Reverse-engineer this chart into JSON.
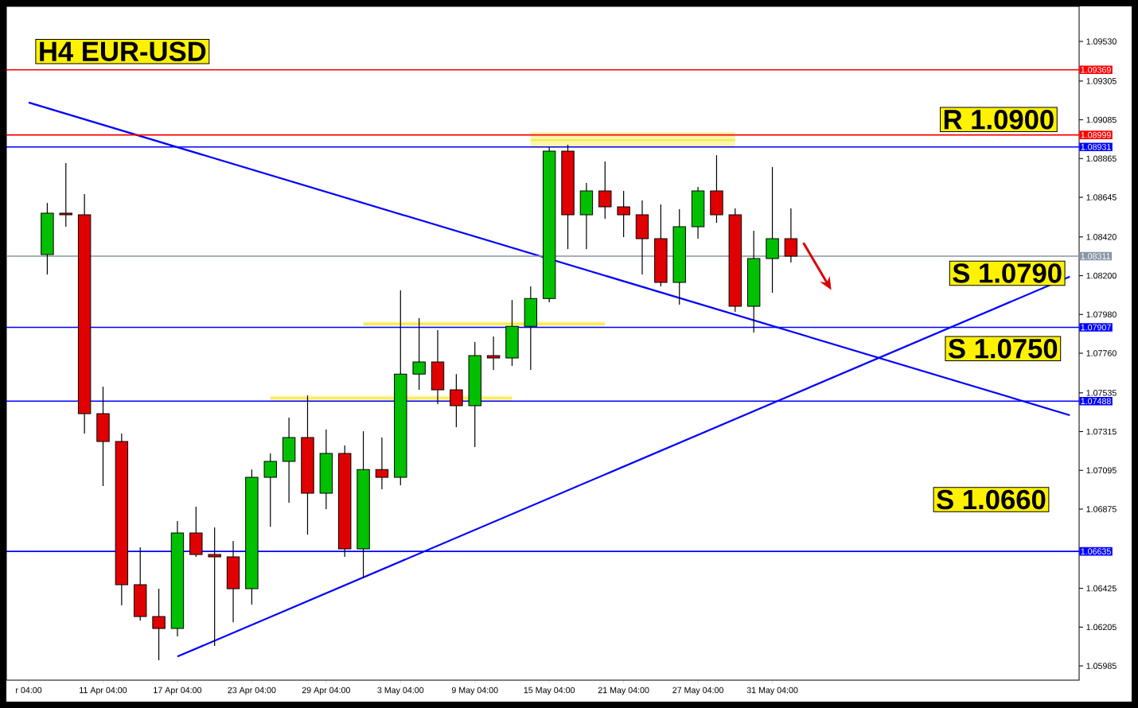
{
  "chart_data": {
    "type": "candlestick",
    "title": "H4 EUR-USD",
    "categories": [
      "r 04:00",
      null,
      null,
      null,
      "11 Apr 04:00",
      null,
      null,
      null,
      "17 Apr 04:00",
      null,
      null,
      null,
      "23 Apr 04:00",
      null,
      null,
      null,
      "29 Apr 04:00",
      null,
      null,
      null,
      "3 May 04:00",
      null,
      null,
      null,
      "9 May 04:00",
      null,
      null,
      null,
      "15 May 04:00",
      null,
      null,
      null,
      "21 May 04:00",
      null,
      null,
      null,
      "27 May 04:00",
      null,
      null,
      null,
      "31 May 04:00",
      null,
      null,
      null,
      null,
      null,
      null,
      null,
      null,
      null,
      null,
      null,
      null,
      null,
      null,
      null,
      null
    ],
    "ohlc": [
      null,
      [
        1.0832,
        1.08613,
        1.08207,
        1.08555
      ],
      [
        1.08555,
        1.08839,
        1.08478,
        1.08546
      ],
      [
        1.08546,
        1.08663,
        1.07304,
        1.07417
      ],
      [
        1.07417,
        1.0757,
        1.07006,
        1.07259
      ],
      [
        1.07259,
        1.07304,
        1.06328,
        1.06446
      ],
      [
        1.06446,
        1.06658,
        1.06242,
        1.06265
      ],
      [
        1.06265,
        1.06423,
        1.06017,
        1.06197
      ],
      [
        1.06197,
        1.06807,
        1.06152,
        1.06739
      ],
      [
        1.06739,
        1.06888,
        1.06604,
        1.06617
      ],
      [
        1.06617,
        1.06771,
        1.06098,
        1.06604
      ],
      [
        1.06604,
        1.06694,
        1.06233,
        1.06423
      ],
      [
        1.06423,
        1.071,
        1.06333,
        1.07055
      ],
      [
        1.07055,
        1.07191,
        1.06775,
        1.07146
      ],
      [
        1.07146,
        1.07394,
        1.06911,
        1.07281
      ],
      [
        1.07281,
        1.0752,
        1.0673,
        1.06965
      ],
      [
        1.06965,
        1.07326,
        1.06875,
        1.07191
      ],
      [
        1.07191,
        1.07236,
        1.06604,
        1.06649
      ],
      [
        1.06649,
        1.07317,
        1.06482,
        1.071
      ],
      [
        1.071,
        1.07281,
        1.06988,
        1.07055
      ],
      [
        1.07055,
        1.08117,
        1.0701,
        1.07642
      ],
      [
        1.07642,
        1.07959,
        1.07552,
        1.0771
      ],
      [
        1.0771,
        1.07891,
        1.07471,
        1.07552
      ],
      [
        1.07552,
        1.07642,
        1.0734,
        1.07462
      ],
      [
        1.07462,
        1.07823,
        1.07227,
        1.07746
      ],
      [
        1.07746,
        1.07855,
        1.07665,
        1.07733
      ],
      [
        1.07733,
        1.08062,
        1.07688,
        1.07913
      ],
      [
        1.07913,
        1.08139,
        1.07665,
        1.08071
      ],
      [
        1.08071,
        1.08929,
        1.08049,
        1.08907
      ],
      [
        1.08907,
        1.08943,
        1.08351,
        1.08546
      ],
      [
        1.08546,
        1.08726,
        1.08351,
        1.08681
      ],
      [
        1.08681,
        1.08848,
        1.08523,
        1.08591
      ],
      [
        1.08591,
        1.08681,
        1.08419,
        1.08546
      ],
      [
        1.08546,
        1.08627,
        1.08207,
        1.0841
      ],
      [
        1.0841,
        1.08604,
        1.08139,
        1.08162
      ],
      [
        1.08162,
        1.08577,
        1.08035,
        1.08478
      ],
      [
        1.08478,
        1.08704,
        1.0841,
        1.08681
      ],
      [
        1.08681,
        1.08884,
        1.085,
        1.08546
      ],
      [
        1.08546,
        1.08582,
        1.07995,
        1.08026
      ],
      [
        1.08026,
        1.08455,
        1.07877,
        1.08297
      ],
      [
        1.08297,
        1.08817,
        1.08103,
        1.0841
      ],
      [
        1.0841,
        1.08582,
        1.08275,
        1.08311
      ],
      null,
      null,
      null,
      null,
      null,
      null,
      null,
      null,
      null,
      null,
      null,
      null,
      null,
      null,
      null
    ],
    "ylim": [
      1.05904,
      1.09729
    ],
    "yticks": [
      {
        "value": 1.05985,
        "label": "1.05985"
      },
      {
        "value": 1.06205,
        "label": "1.06205"
      },
      {
        "value": 1.06425,
        "label": "1.06425"
      },
      {
        "value": 1.06875,
        "label": "1.06875"
      },
      {
        "value": 1.07095,
        "label": "1.07095"
      },
      {
        "value": 1.07315,
        "label": "1.07315"
      },
      {
        "value": 1.07535,
        "label": "1.07535"
      },
      {
        "value": 1.0776,
        "label": "1.07760"
      },
      {
        "value": 1.0798,
        "label": "1.07980"
      },
      {
        "value": 1.082,
        "label": "1.08200"
      },
      {
        "value": 1.0842,
        "label": "1.08420"
      },
      {
        "value": 1.08645,
        "label": "1.08645"
      },
      {
        "value": 1.08865,
        "label": "1.08865"
      },
      {
        "value": 1.09085,
        "label": "1.09085"
      },
      {
        "value": 1.09305,
        "label": "1.09305"
      },
      {
        "value": 1.0953,
        "label": "1.09530"
      }
    ],
    "series": [
      {
        "type": "line",
        "color": "#f7ea4a",
        "values": [
          null,
          null,
          null,
          null,
          null,
          null,
          null,
          null,
          null,
          null,
          null,
          null,
          null,
          1.07505,
          null,
          null,
          null,
          null,
          null,
          null,
          null,
          null,
          null,
          null,
          null,
          null,
          1.07505,
          null,
          null,
          null,
          null,
          null,
          null,
          null,
          null,
          null,
          null,
          null,
          null,
          null,
          null,
          null,
          null,
          null,
          null,
          null,
          null,
          null,
          null,
          null,
          null,
          null,
          null,
          null,
          null,
          null,
          null
        ],
        "lower": [
          null,
          null,
          null,
          null,
          null,
          null,
          null,
          null,
          null,
          null,
          null,
          null,
          null,
          1.07489,
          null,
          null,
          null,
          null,
          null,
          null,
          null,
          null,
          null,
          null,
          null,
          null,
          1.07489,
          null,
          null,
          null,
          null,
          null,
          null,
          null,
          null,
          null,
          null,
          null,
          null,
          null,
          null,
          null,
          null,
          null,
          null,
          null,
          null,
          null,
          null,
          null,
          null,
          null,
          null,
          null,
          null,
          null,
          null
        ],
        "upper": [
          null,
          null,
          null,
          null,
          null,
          null,
          null,
          null,
          null,
          null,
          null,
          null,
          null,
          1.0752,
          null,
          null,
          null,
          null,
          null,
          null,
          null,
          null,
          null,
          null,
          null,
          null,
          1.0752,
          null,
          null,
          null,
          null,
          null,
          null,
          null,
          null,
          null,
          null,
          null,
          null,
          null,
          null,
          null,
          null,
          null,
          null,
          null,
          null,
          null,
          null,
          null,
          null,
          null,
          null,
          null,
          null,
          null,
          null
        ]
      },
      {
        "type": "line",
        "color": "#f7ea4a",
        "values": [
          null,
          null,
          null,
          null,
          null,
          null,
          null,
          null,
          null,
          null,
          null,
          null,
          null,
          null,
          null,
          null,
          null,
          null,
          1.07927,
          null,
          null,
          null,
          null,
          null,
          null,
          null,
          null,
          null,
          null,
          null,
          null,
          1.07927,
          null,
          null,
          null,
          null,
          null,
          null,
          null,
          null,
          null,
          null,
          null,
          null,
          null,
          null,
          null,
          null,
          null,
          null,
          null,
          null,
          null,
          null,
          null,
          null,
          null
        ],
        "lower": [
          null,
          null,
          null,
          null,
          null,
          null,
          null,
          null,
          null,
          null,
          null,
          null,
          null,
          null,
          null,
          null,
          null,
          null,
          1.07913,
          null,
          null,
          null,
          null,
          null,
          null,
          null,
          null,
          null,
          null,
          null,
          null,
          1.07913,
          null,
          null,
          null,
          null,
          null,
          null,
          null,
          null,
          null,
          null,
          null,
          null,
          null,
          null,
          null,
          null,
          null,
          null,
          null,
          null,
          null,
          null,
          null,
          null,
          null
        ],
        "upper": [
          null,
          null,
          null,
          null,
          null,
          null,
          null,
          null,
          null,
          null,
          null,
          null,
          null,
          null,
          null,
          null,
          null,
          null,
          1.0794,
          null,
          null,
          null,
          null,
          null,
          null,
          null,
          null,
          null,
          null,
          null,
          null,
          1.0794,
          null,
          null,
          null,
          null,
          null,
          null,
          null,
          null,
          null,
          null,
          null,
          null,
          null,
          null,
          null,
          null,
          null,
          null,
          null,
          null,
          null,
          null,
          null,
          null,
          null
        ]
      },
      {
        "type": "line",
        "color": "#f7ea4a",
        "values": [
          null,
          null,
          null,
          null,
          null,
          null,
          null,
          null,
          null,
          null,
          null,
          null,
          null,
          null,
          null,
          null,
          null,
          null,
          null,
          null,
          null,
          null,
          null,
          null,
          null,
          null,
          null,
          1.0897,
          null,
          null,
          null,
          null,
          null,
          null,
          null,
          null,
          null,
          null,
          1.0897,
          null,
          null,
          null,
          null,
          null,
          null,
          null,
          null,
          null,
          null,
          null,
          null,
          null,
          null,
          null,
          null,
          null,
          null
        ],
        "lower": [
          null,
          null,
          null,
          null,
          null,
          null,
          null,
          null,
          null,
          null,
          null,
          null,
          null,
          null,
          null,
          null,
          null,
          null,
          null,
          null,
          null,
          null,
          null,
          null,
          null,
          null,
          null,
          1.08925,
          null,
          null,
          null,
          null,
          null,
          null,
          null,
          null,
          null,
          null,
          1.08925,
          null,
          null,
          null,
          null,
          null,
          null,
          null,
          null,
          null,
          null,
          null,
          null,
          null,
          null,
          null,
          null,
          null,
          null
        ],
        "upper": [
          null,
          null,
          null,
          null,
          null,
          null,
          null,
          null,
          null,
          null,
          null,
          null,
          null,
          null,
          null,
          null,
          null,
          null,
          null,
          null,
          null,
          null,
          null,
          null,
          null,
          null,
          null,
          1.09015,
          null,
          null,
          null,
          null,
          null,
          null,
          null,
          null,
          null,
          null,
          1.09015,
          null,
          null,
          null,
          null,
          null,
          null,
          null,
          null,
          null,
          null,
          null,
          null,
          null,
          null,
          null,
          null,
          null,
          null
        ]
      },
      {
        "type": "line",
        "color": "#0000ff",
        "values": [
          1.09183,
          null,
          null,
          null,
          null,
          null,
          null,
          null,
          null,
          null,
          null,
          null,
          null,
          null,
          null,
          null,
          null,
          null,
          null,
          null,
          null,
          null,
          null,
          null,
          null,
          null,
          null,
          null,
          null,
          null,
          null,
          null,
          null,
          null,
          null,
          null,
          null,
          null,
          null,
          null,
          null,
          null,
          null,
          null,
          null,
          null,
          null,
          null,
          null,
          null,
          null,
          null,
          null,
          null,
          null,
          null,
          1.07408
        ]
      },
      {
        "type": "line",
        "color": "#0000ff",
        "values": [
          null,
          null,
          null,
          null,
          null,
          null,
          null,
          null,
          1.06038,
          null,
          null,
          null,
          null,
          null,
          null,
          null,
          null,
          null,
          null,
          null,
          null,
          null,
          null,
          null,
          null,
          null,
          null,
          null,
          null,
          null,
          null,
          null,
          null,
          null,
          null,
          null,
          null,
          null,
          null,
          null,
          null,
          null,
          null,
          null,
          null,
          null,
          null,
          null,
          null,
          null,
          null,
          null,
          null,
          null,
          null,
          null,
          1.08195
        ]
      }
    ],
    "ref_lines": [
      {
        "axis": "y",
        "value": 1.09369,
        "label": "1.09369",
        "color": "#ff0000"
      },
      {
        "axis": "y",
        "value": 1.08999,
        "label": "1.08999",
        "color": "#ff0000"
      },
      {
        "axis": "y",
        "value": 1.08931,
        "label": "1.08931",
        "color": "#0000ff"
      },
      {
        "axis": "y",
        "value": 1.08311,
        "label": "1.08311",
        "color": "#8796a5"
      },
      {
        "axis": "y",
        "value": 1.07907,
        "label": "1.07907",
        "color": "#0000ff"
      },
      {
        "axis": "y",
        "value": 1.07488,
        "label": "1.07488",
        "color": "#0000ff"
      },
      {
        "axis": "y",
        "value": 1.06635,
        "label": "1.06635",
        "color": "#0000ff"
      }
    ],
    "annotations": [
      "R 1.0900",
      "S 1.0790",
      "S 1.0750",
      "S 1.0660"
    ]
  }
}
